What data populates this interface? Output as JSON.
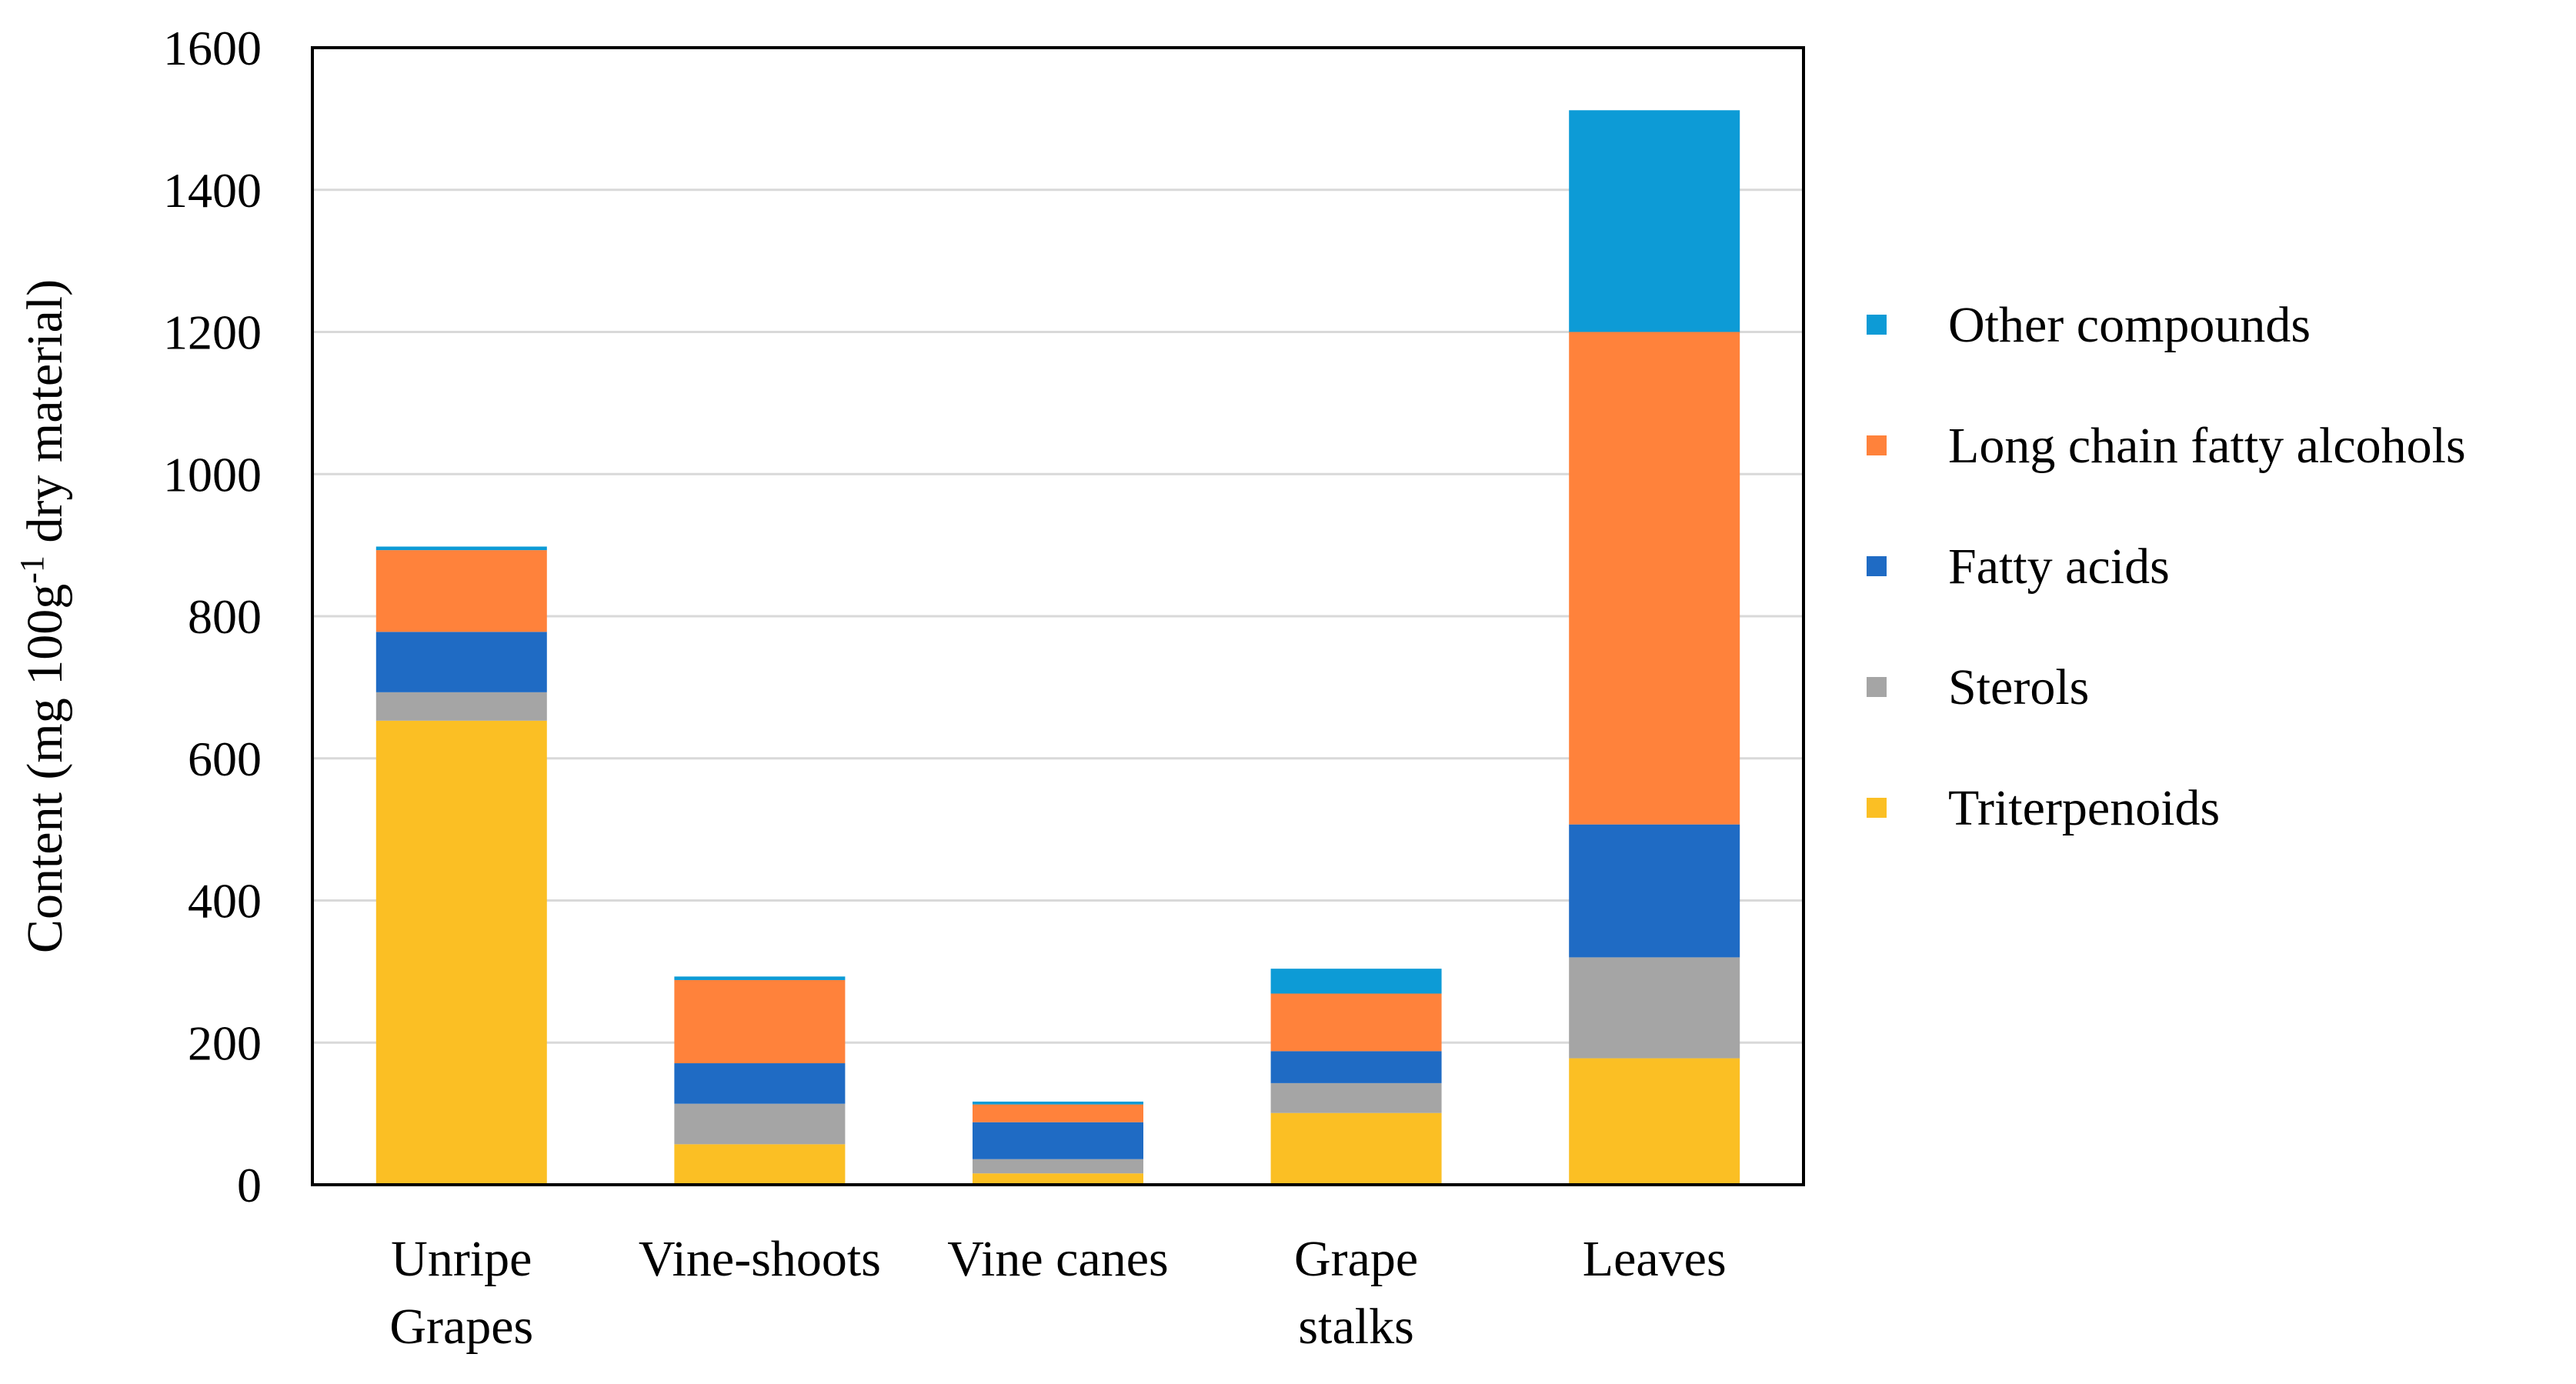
{
  "chart_data": {
    "type": "bar",
    "stacked": true,
    "title": "",
    "xlabel": "",
    "ylabel": "Content (mg 100g",
    "ylabel_superscript": "-1",
    "ylabel_suffix": " dry material)",
    "ylim": [
      0,
      1600
    ],
    "yticks": [
      "0",
      "200",
      "400",
      "600",
      "800",
      "1000",
      "1200",
      "1400",
      "1600"
    ],
    "grid": true,
    "legend_position": "right",
    "categories": [
      [
        "Unripe",
        "Grapes"
      ],
      [
        "Vine-shoots"
      ],
      [
        "Vine canes"
      ],
      [
        "Grape",
        "stalks"
      ],
      [
        "Leaves"
      ]
    ],
    "series": [
      {
        "name": "Triterpenoids",
        "color": "#FBBF24",
        "values": [
          653,
          57,
          16,
          101,
          178
        ]
      },
      {
        "name": "Sterols",
        "color": "#A5A5A5",
        "values": [
          40,
          57,
          20,
          42,
          142
        ]
      },
      {
        "name": "Fatty acids",
        "color": "#1F6BC4",
        "values": [
          85,
          57,
          52,
          45,
          187
        ]
      },
      {
        "name": "Long chain fatty alcohols",
        "color": "#FF823B",
        "values": [
          115,
          117,
          25,
          81,
          693
        ]
      },
      {
        "name": "Other compounds",
        "color": "#0D9BD6",
        "values": [
          5,
          5,
          4,
          35,
          312
        ]
      }
    ]
  }
}
